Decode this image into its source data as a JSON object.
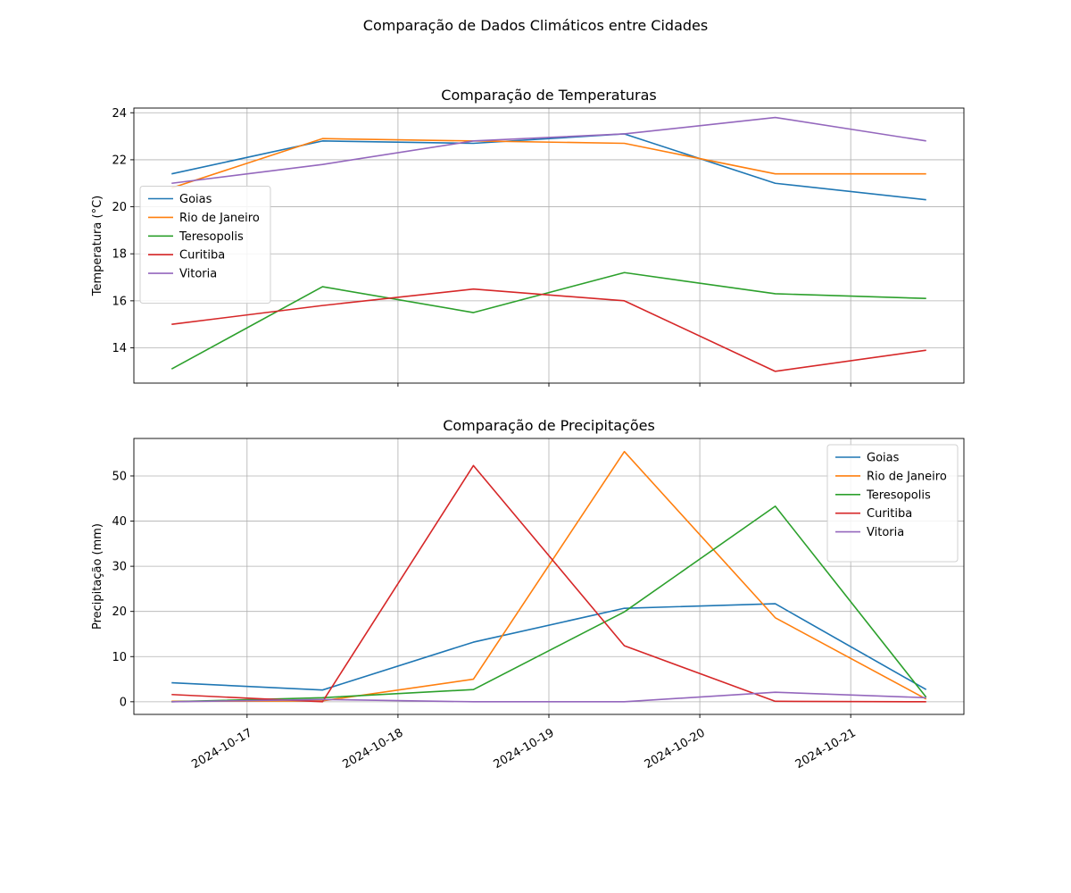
{
  "figure": {
    "suptitle": "Comparação de Dados Climáticos entre Cidades"
  },
  "colors": {
    "Goias": "#1f77b4",
    "Rio de Janeiro": "#ff7f0e",
    "Teresopolis": "#2ca02c",
    "Curitiba": "#d62728",
    "Vitoria": "#9467bd",
    "grid": "#b0b0b0"
  },
  "chart_data": [
    {
      "type": "line",
      "title": "Comparação de Temperaturas",
      "xlabel": "",
      "ylabel": "Temperatura (°C)",
      "x": [
        "2024-10-16 12:00",
        "2024-10-17 12:00",
        "2024-10-18 12:00",
        "2024-10-19 12:00",
        "2024-10-20 12:00",
        "2024-10-21 12:00"
      ],
      "x_ticks": [
        "2024-10-17",
        "2024-10-18",
        "2024-10-19",
        "2024-10-20",
        "2024-10-21"
      ],
      "xlim": [
        "2024-10-16 06:00",
        "2024-10-21 18:00"
      ],
      "ylim": [
        12.5,
        24.2
      ],
      "y_ticks": [
        14,
        16,
        18,
        20,
        22,
        24
      ],
      "grid": true,
      "legend_position": "center-left",
      "series": [
        {
          "name": "Goias",
          "values": [
            21.4,
            22.8,
            22.7,
            23.1,
            21.0,
            20.3
          ]
        },
        {
          "name": "Rio de Janeiro",
          "values": [
            20.8,
            22.9,
            22.8,
            22.7,
            21.4,
            21.4
          ]
        },
        {
          "name": "Teresopolis",
          "values": [
            13.1,
            16.6,
            15.5,
            17.2,
            16.3,
            16.1
          ]
        },
        {
          "name": "Curitiba",
          "values": [
            15.0,
            15.8,
            16.5,
            16.0,
            13.0,
            13.9
          ]
        },
        {
          "name": "Vitoria",
          "values": [
            21.0,
            21.8,
            22.8,
            23.1,
            23.8,
            22.8
          ]
        }
      ]
    },
    {
      "type": "line",
      "title": "Comparação de Precipitações",
      "xlabel": "",
      "ylabel": "Precipitação (mm)",
      "x": [
        "2024-10-16 12:00",
        "2024-10-17 12:00",
        "2024-10-18 12:00",
        "2024-10-19 12:00",
        "2024-10-20 12:00",
        "2024-10-21 12:00"
      ],
      "x_ticks": [
        "2024-10-17",
        "2024-10-18",
        "2024-10-19",
        "2024-10-20",
        "2024-10-21"
      ],
      "xlim": [
        "2024-10-16 06:00",
        "2024-10-21 18:00"
      ],
      "ylim": [
        -2.8,
        58.3
      ],
      "y_ticks": [
        0,
        10,
        20,
        30,
        40,
        50
      ],
      "grid": true,
      "legend_position": "top-right",
      "series": [
        {
          "name": "Goias",
          "values": [
            4.2,
            2.6,
            13.2,
            20.7,
            21.7,
            2.7
          ]
        },
        {
          "name": "Rio de Janeiro",
          "values": [
            0.1,
            0.2,
            5.0,
            55.4,
            18.6,
            0.6
          ]
        },
        {
          "name": "Teresopolis",
          "values": [
            0.0,
            0.9,
            2.7,
            19.9,
            43.3,
            1.0
          ]
        },
        {
          "name": "Curitiba",
          "values": [
            1.6,
            0.0,
            52.3,
            12.4,
            0.1,
            0.0
          ]
        },
        {
          "name": "Vitoria",
          "values": [
            0.0,
            0.5,
            0.0,
            0.0,
            2.1,
            0.9
          ]
        }
      ]
    }
  ]
}
